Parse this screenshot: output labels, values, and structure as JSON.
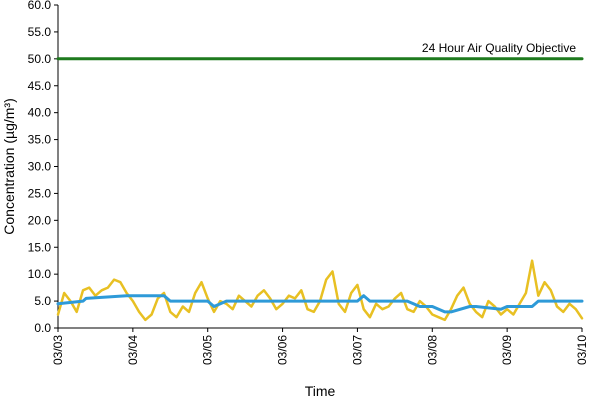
{
  "chart_data": {
    "type": "line",
    "xlabel": "Time",
    "ylabel": "Concentration (µg/m³)",
    "ylim": [
      0,
      60
    ],
    "y_ticks": [
      "0.0",
      "5.0",
      "10.0",
      "15.0",
      "20.0",
      "25.0",
      "30.0",
      "35.0",
      "40.0",
      "45.0",
      "50.0",
      "55.0",
      "60.0"
    ],
    "x_ticks": [
      "03/03",
      "03/04",
      "03/05",
      "03/06",
      "03/07",
      "03/08",
      "03/09",
      "03/10"
    ],
    "xlim": [
      "03/03",
      "03/10"
    ],
    "grid": false,
    "legend": "none",
    "annotations": [
      {
        "text": "24 Hour Air Quality Objective",
        "y": 50
      }
    ],
    "series": [
      {
        "color": "#e8c023",
        "x": [
          "03/03 00:00",
          "03/03 02:00",
          "03/03 04:00",
          "03/03 06:00",
          "03/03 08:00",
          "03/03 10:00",
          "03/03 12:00",
          "03/03 14:00",
          "03/03 16:00",
          "03/03 18:00",
          "03/03 20:00",
          "03/03 22:00",
          "03/04 00:00",
          "03/04 02:00",
          "03/04 04:00",
          "03/04 06:00",
          "03/04 08:00",
          "03/04 10:00",
          "03/04 12:00",
          "03/04 14:00",
          "03/04 16:00",
          "03/04 18:00",
          "03/04 20:00",
          "03/04 22:00",
          "03/05 00:00",
          "03/05 02:00",
          "03/05 04:00",
          "03/05 06:00",
          "03/05 08:00",
          "03/05 10:00",
          "03/05 12:00",
          "03/05 14:00",
          "03/05 16:00",
          "03/05 18:00",
          "03/05 20:00",
          "03/05 22:00",
          "03/06 00:00",
          "03/06 02:00",
          "03/06 04:00",
          "03/06 06:00",
          "03/06 08:00",
          "03/06 10:00",
          "03/06 12:00",
          "03/06 14:00",
          "03/06 16:00",
          "03/06 18:00",
          "03/06 20:00",
          "03/06 22:00",
          "03/07 00:00",
          "03/07 02:00",
          "03/07 04:00",
          "03/07 06:00",
          "03/07 08:00",
          "03/07 10:00",
          "03/07 12:00",
          "03/07 14:00",
          "03/07 16:00",
          "03/07 18:00",
          "03/07 20:00",
          "03/07 22:00",
          "03/08 00:00",
          "03/08 02:00",
          "03/08 04:00",
          "03/08 06:00",
          "03/08 08:00",
          "03/08 10:00",
          "03/08 12:00",
          "03/08 14:00",
          "03/08 16:00",
          "03/08 18:00",
          "03/08 20:00",
          "03/08 22:00",
          "03/09 00:00",
          "03/09 02:00",
          "03/09 04:00",
          "03/09 06:00",
          "03/09 08:00",
          "03/09 10:00",
          "03/09 12:00",
          "03/09 14:00",
          "03/09 16:00",
          "03/09 18:00",
          "03/09 20:00",
          "03/09 22:00",
          "03/10 00:00"
        ],
        "values": [
          2.5,
          6.5,
          5.0,
          3.0,
          7.0,
          7.5,
          6.0,
          7.0,
          7.5,
          9.0,
          8.5,
          6.5,
          5.0,
          3.0,
          1.5,
          2.5,
          5.5,
          6.5,
          3.0,
          2.0,
          4.0,
          3.0,
          6.5,
          8.5,
          5.5,
          3.0,
          5.0,
          4.5,
          3.5,
          6.0,
          5.0,
          4.0,
          6.0,
          7.0,
          5.5,
          3.5,
          4.5,
          6.0,
          5.5,
          7.0,
          3.5,
          3.0,
          5.0,
          9.0,
          10.5,
          4.5,
          3.0,
          6.5,
          8.0,
          3.5,
          2.0,
          4.5,
          3.5,
          4.0,
          5.5,
          6.5,
          3.5,
          3.0,
          5.0,
          4.0,
          2.5,
          2.0,
          1.5,
          3.5,
          6.0,
          7.5,
          4.5,
          3.0,
          2.0,
          5.0,
          4.0,
          2.5,
          3.5,
          2.5,
          4.5,
          6.5,
          12.5,
          6.0,
          8.5,
          7.0,
          4.0,
          3.0,
          4.5,
          3.5,
          1.8
        ]
      },
      {
        "color": "#2e9ad8",
        "x": [
          "03/03 00:00",
          "03/03 08:00",
          "03/03 09:00",
          "03/03 22:00",
          "03/04 00:00",
          "03/04 10:00",
          "03/04 12:00",
          "03/04 22:00",
          "03/05 00:00",
          "03/05 02:00",
          "03/05 06:00",
          "03/05 22:00",
          "03/06 00:00",
          "03/06 22:00",
          "03/07 00:00",
          "03/07 02:00",
          "03/07 04:00",
          "03/07 16:00",
          "03/07 20:00",
          "03/07 22:00",
          "03/08 00:00",
          "03/08 04:00",
          "03/08 06:00",
          "03/08 12:00",
          "03/08 14:00",
          "03/08 22:00",
          "03/09 00:00",
          "03/09 08:00",
          "03/09 10:00",
          "03/09 22:00",
          "03/10 00:00"
        ],
        "values": [
          4.5,
          5.0,
          5.5,
          6.0,
          6.0,
          6.0,
          5.0,
          5.0,
          5.0,
          4.0,
          5.0,
          5.0,
          5.0,
          5.0,
          5.0,
          6.0,
          5.0,
          5.0,
          4.0,
          4.0,
          4.0,
          3.0,
          3.0,
          4.0,
          4.0,
          3.5,
          4.0,
          4.0,
          5.0,
          5.0,
          5.0
        ]
      },
      {
        "color": "#1e7a1e",
        "x": [
          "03/03 00:00",
          "03/10 00:00"
        ],
        "values": [
          50,
          50
        ]
      }
    ]
  }
}
